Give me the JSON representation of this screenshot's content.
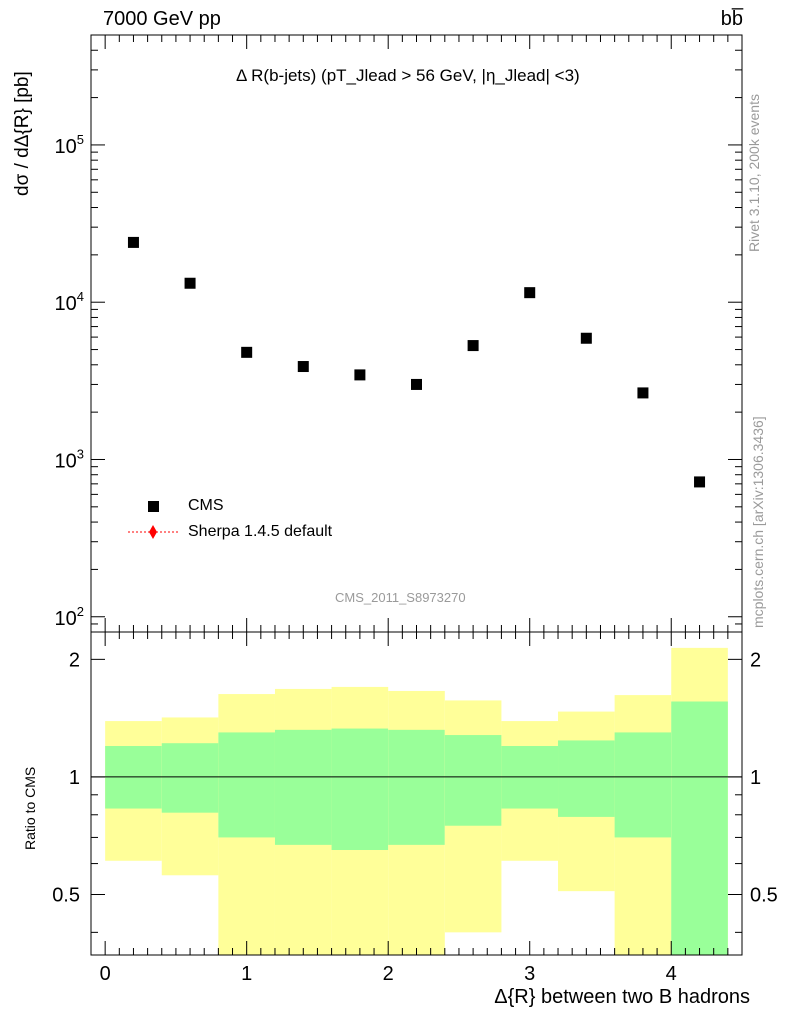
{
  "header": {
    "beam": "7000 GeV pp",
    "process": "bb̅"
  },
  "side_labels": {
    "rivet": "Rivet 3.1.10,  200k events",
    "source": "mcplots.cern.ch [arXiv:1306.3436]"
  },
  "plot_title": "Δ R(b-jets) (pT_Jlead > 56 GeV, |η_Jlead| <3)",
  "analysis_id": "CMS_2011_S8973270",
  "legend": {
    "entries": [
      "CMS",
      "Sherpa 1.4.5 default"
    ]
  },
  "colors": {
    "data_marker": "#000000",
    "mc_line": "#ff0000",
    "band_inner": "#99ff99",
    "band_outer": "#ffff99"
  },
  "chart_data": [
    {
      "type": "scatter",
      "name": "main",
      "title": "Δ R(b-jets) (pT_Jlead > 56 GeV, |η_Jlead| <3)",
      "ylabel": "dσ / dΔ{R} [pb]",
      "yscale": "log",
      "ylim": [
        80,
        500000
      ],
      "xlim": [
        -0.1,
        4.5
      ],
      "y_ticklabels": [
        "10^2",
        "10^3",
        "10^4",
        "10^5"
      ],
      "series": [
        {
          "name": "CMS",
          "marker": "square",
          "x": [
            0.2,
            0.6,
            1.0,
            1.4,
            1.8,
            2.2,
            2.6,
            3.0,
            3.4,
            3.8,
            4.2
          ],
          "y": [
            24000,
            13200,
            4800,
            3900,
            3450,
            3000,
            5300,
            11500,
            5900,
            2650,
            720
          ]
        },
        {
          "name": "Sherpa 1.4.5 default",
          "marker": "diamond",
          "x": [],
          "y": []
        }
      ]
    },
    {
      "type": "area",
      "name": "ratio",
      "ylabel": "Ratio to CMS",
      "xlabel": "Δ{R} between two B hadrons",
      "yscale": "log",
      "ylim": [
        0.35,
        2.35
      ],
      "xlim": [
        -0.1,
        4.5
      ],
      "x_ticklabels": [
        "0",
        "1",
        "2",
        "3",
        "4"
      ],
      "y_ticklabels": [
        "0.5",
        "1",
        "2"
      ],
      "bin_edges": [
        0,
        0.4,
        0.8,
        1.2,
        1.6,
        2.0,
        2.4,
        2.8,
        3.2,
        3.6,
        4.0,
        4.4
      ],
      "reference_line": 1,
      "bands": {
        "inner_low": [
          0.83,
          0.81,
          0.7,
          0.67,
          0.65,
          0.67,
          0.75,
          0.83,
          0.79,
          0.7,
          0.3
        ],
        "inner_high": [
          1.2,
          1.22,
          1.3,
          1.32,
          1.33,
          1.32,
          1.28,
          1.2,
          1.24,
          1.3,
          1.56
        ],
        "outer_low": [
          0.61,
          0.56,
          0.3,
          0.3,
          0.3,
          0.3,
          0.4,
          0.61,
          0.51,
          0.3,
          0.3
        ],
        "outer_high": [
          1.39,
          1.42,
          1.63,
          1.68,
          1.7,
          1.66,
          1.57,
          1.39,
          1.47,
          1.62,
          2.14
        ]
      }
    }
  ]
}
